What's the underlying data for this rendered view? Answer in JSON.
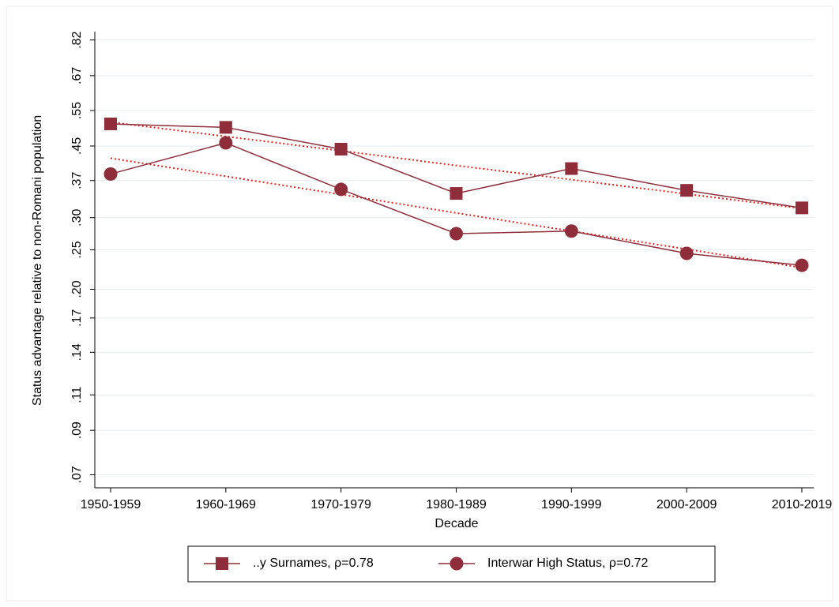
{
  "chart_data": {
    "type": "line",
    "y_label": "Status advantage relative to non-Romani population",
    "x_label": "Decade",
    "categories": [
      "1950-1959",
      "1960-1969",
      "1970-1979",
      "1980-1989",
      "1990-1999",
      "2000-2009",
      "2010-2019"
    ],
    "series": [
      {
        "name": "..y Surnames, ρ=0.78",
        "color": "#8f2e3a",
        "marker": "square",
        "values": [
          0.51,
          0.5,
          0.442,
          0.344,
          0.396,
          0.35,
          0.317
        ]
      },
      {
        "name": "Interwar High Status, ρ=0.72",
        "color": "#8f2e3a",
        "marker": "circle",
        "values": [
          0.384,
          0.458,
          0.352,
          0.274,
          0.278,
          0.245,
          0.229
        ]
      }
    ],
    "trend_lines": [
      {
        "color": "#e8231f",
        "values": [
          0.515,
          0.475,
          0.438,
          0.403,
          0.372,
          0.343,
          0.316
        ]
      },
      {
        "color": "#e8231f",
        "values": [
          0.42,
          0.379,
          0.342,
          0.308,
          0.278,
          0.251,
          0.226
        ]
      }
    ],
    "ylim": [
      0.065,
      0.86
    ],
    "log_y": true,
    "yticks": [
      {
        "value": 0.07,
        "label": ".07"
      },
      {
        "value": 0.09,
        "label": ".09"
      },
      {
        "value": 0.11,
        "label": ".11"
      },
      {
        "value": 0.14,
        "label": ".14"
      },
      {
        "value": 0.17,
        "label": ".17"
      },
      {
        "value": 0.2,
        "label": ".20"
      },
      {
        "value": 0.25,
        "label": ".25"
      },
      {
        "value": 0.3,
        "label": ".30"
      },
      {
        "value": 0.37,
        "label": ".37"
      },
      {
        "value": 0.45,
        "label": ".45"
      },
      {
        "value": 0.55,
        "label": ".55"
      },
      {
        "value": 0.67,
        "label": ".67"
      },
      {
        "value": 0.82,
        "label": ".82"
      }
    ],
    "grid": true,
    "legend": "bottom"
  }
}
